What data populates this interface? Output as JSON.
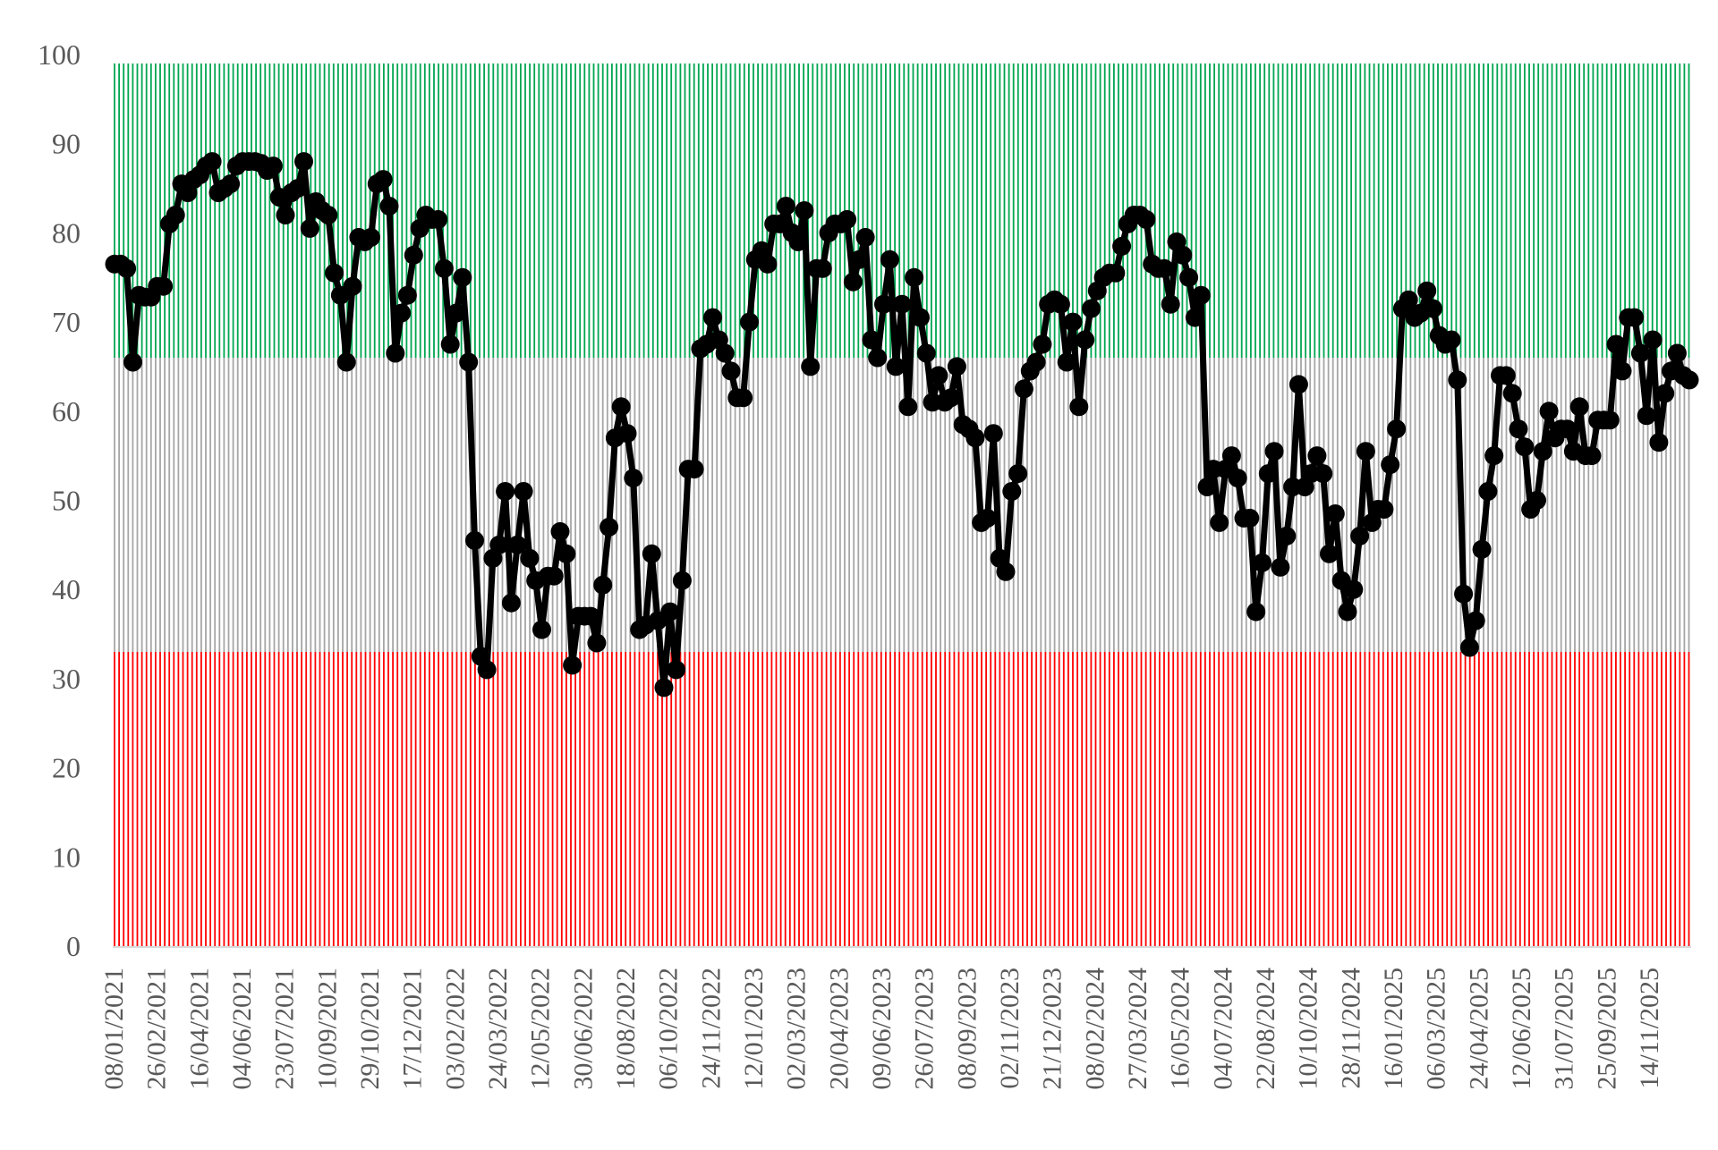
{
  "chart_data": {
    "type": "line",
    "title": "",
    "xlabel": "",
    "ylabel": "",
    "ylim": [
      0,
      100
    ],
    "yticks": [
      0,
      10,
      20,
      30,
      40,
      50,
      60,
      70,
      80,
      90,
      100
    ],
    "grid": false,
    "legend": "none",
    "bands": [
      {
        "from": 0,
        "to": 33,
        "color": "#ff0000"
      },
      {
        "from": 33,
        "to": 66,
        "color": "#a6a6a6"
      },
      {
        "from": 66,
        "to": 99,
        "color": "#00a650"
      }
    ],
    "x_tick_labels": [
      "08/01/2021",
      "26/02/2021",
      "16/04/2021",
      "04/06/2021",
      "23/07/2021",
      "10/09/2021",
      "29/10/2021",
      "17/12/2021",
      "03/02/2022",
      "24/03/2022",
      "12/05/2022",
      "30/06/2022",
      "18/08/2022",
      "06/10/2022",
      "24/11/2022",
      "12/01/2023",
      "02/03/2023",
      "20/04/2023",
      "09/06/2023",
      "26/07/2023",
      "08/09/2023",
      "02/11/2023",
      "21/12/2023",
      "08/02/2024",
      "27/03/2024",
      "16/05/2024",
      "04/07/2024",
      "22/08/2024",
      "10/10/2024",
      "28/11/2024",
      "16/01/2025",
      "06/03/2025",
      "24/04/2025",
      "12/06/2025",
      "31/07/2025",
      "25/09/2025",
      "14/11/2025"
    ],
    "line_color": "#000000",
    "series": [
      {
        "values": [
          76.5,
          76.5,
          76,
          65.5,
          73,
          72.8,
          72.8,
          74,
          74,
          81,
          82,
          85.5,
          84.5,
          86,
          86.5,
          87.5,
          88,
          84.5,
          85,
          85.5,
          87.5,
          88,
          88,
          88,
          87.8,
          87,
          87.5,
          84,
          82,
          84.5,
          85,
          88,
          80.5,
          83.5,
          82.5,
          82,
          75.5,
          73,
          65.5,
          74,
          79.5,
          79,
          79.5,
          85.5,
          86,
          83,
          66.5,
          71,
          73,
          77.5,
          80.5,
          82,
          81.5,
          81.5,
          76,
          67.5,
          71,
          75,
          65.5,
          45.5,
          32.5,
          31,
          43.5,
          45,
          51,
          38.5,
          45,
          51,
          43.5,
          41,
          35.5,
          41.5,
          41.5,
          46.5,
          44,
          31.5,
          37,
          37,
          37,
          34,
          40.5,
          47,
          57,
          60.5,
          57.5,
          52.5,
          35.5,
          36,
          44,
          36.5,
          29,
          37.5,
          31,
          41,
          53.5,
          53.5,
          67,
          67.5,
          70.5,
          68,
          66.5,
          64.5,
          61.5,
          61.5,
          70,
          77,
          78,
          76.5,
          81,
          81,
          83,
          80,
          79,
          82.5,
          65,
          76,
          76,
          80,
          81,
          81,
          81.5,
          74.5,
          77,
          79.5,
          68,
          66,
          72,
          77,
          65,
          72,
          60.5,
          75,
          70.5,
          66.5,
          61,
          64,
          61,
          61.5,
          65,
          58.5,
          58,
          57,
          47.5,
          48,
          57.5,
          43.5,
          42,
          51,
          53,
          62.5,
          64.5,
          65.5,
          67.5,
          72,
          72.5,
          72,
          65.5,
          70,
          60.5,
          68,
          71.5,
          73.5,
          75,
          75.5,
          75.5,
          78.5,
          81,
          82,
          82,
          81.5,
          76.5,
          76,
          76,
          72,
          79,
          77.5,
          75,
          70.5,
          73,
          51.5,
          53.5,
          47.5,
          53.5,
          55,
          52.5,
          48,
          48,
          37.5,
          43,
          53,
          55.5,
          42.5,
          46,
          51.5,
          63,
          51.5,
          53,
          55,
          53,
          44,
          48.5,
          41,
          37.5,
          40,
          46,
          55.5,
          47.5,
          49,
          49,
          54,
          58,
          71.5,
          72.5,
          70.5,
          71,
          73.5,
          71.5,
          68.5,
          67.5,
          68,
          63.5,
          39.5,
          33.5,
          36.5,
          44.5,
          51,
          55,
          64,
          64,
          62,
          58,
          56,
          49,
          50,
          55.5,
          60,
          57,
          58,
          58,
          55.5,
          60.5,
          55,
          55,
          59,
          59,
          59,
          67.5,
          64.5,
          70.5,
          70.5,
          66.5,
          59.5,
          68,
          56.5,
          62,
          64.5,
          66.5,
          64,
          63.5
        ]
      }
    ]
  }
}
